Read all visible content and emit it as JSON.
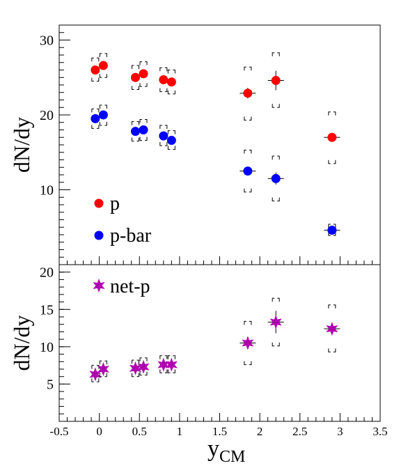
{
  "colors": {
    "p": "#ff0000",
    "pbar": "#0000ff",
    "netp": "#b000b0",
    "axis": "#000000"
  },
  "chart_data": [
    {
      "type": "scatter",
      "panel": "top",
      "ylabel": "dN/dy",
      "xlim": [
        -0.5,
        3.5
      ],
      "ylim": [
        0,
        32
      ],
      "yticks": [
        "10",
        "20",
        "30"
      ],
      "ytick_values": [
        10,
        20,
        30
      ],
      "legend_position": "bottom-left",
      "series": [
        {
          "name": "p",
          "marker": "circle",
          "color_key": "p",
          "x": [
            -0.05,
            0.05,
            0.45,
            0.55,
            0.8,
            0.9,
            1.85,
            2.2,
            2.9
          ],
          "y": [
            26.0,
            26.6,
            25.0,
            25.5,
            24.7,
            24.4,
            22.9,
            24.6,
            17.0
          ],
          "xerr": [
            0,
            0,
            0,
            0,
            0,
            0,
            0.1,
            0.1,
            0.1
          ],
          "yerr_stat": [
            0.3,
            0.3,
            0.3,
            0.3,
            0.3,
            0.3,
            0.7,
            1.3,
            0.5
          ],
          "ysys_low": [
            24.5,
            25.0,
            23.4,
            23.8,
            23.1,
            22.8,
            19.3,
            21.0,
            13.5
          ],
          "ysys_high": [
            27.6,
            28.2,
            26.6,
            27.1,
            26.3,
            26.0,
            26.4,
            28.3,
            20.4
          ]
        },
        {
          "name": "p-bar",
          "marker": "circle",
          "color_key": "pbar",
          "x": [
            -0.05,
            0.05,
            0.45,
            0.55,
            0.8,
            0.9,
            1.85,
            2.2,
            2.9
          ],
          "y": [
            19.5,
            20.0,
            17.8,
            18.0,
            17.2,
            16.6,
            12.5,
            11.5,
            4.6
          ],
          "xerr": [
            0,
            0,
            0,
            0,
            0,
            0,
            0.1,
            0.1,
            0.1
          ],
          "yerr_stat": [
            0.3,
            0.3,
            0.3,
            0.3,
            0.3,
            0.3,
            0.4,
            0.8,
            0.3
          ],
          "ysys_low": [
            18.2,
            18.6,
            16.5,
            16.6,
            15.9,
            15.4,
            9.7,
            8.5,
            3.9
          ],
          "ysys_high": [
            20.8,
            21.3,
            19.1,
            19.4,
            18.6,
            17.9,
            15.3,
            14.5,
            5.4
          ]
        }
      ]
    },
    {
      "type": "scatter",
      "panel": "bottom",
      "ylabel": "dN/dy",
      "xlabel": "y",
      "xlabel_sub": "CM",
      "xlim": [
        -0.5,
        3.5
      ],
      "ylim": [
        0,
        21
      ],
      "xticks": [
        "-0.5",
        "0",
        "0.5",
        "1",
        "1.5",
        "2",
        "2.5",
        "3",
        "3.5"
      ],
      "xtick_values": [
        -0.5,
        0,
        0.5,
        1,
        1.5,
        2,
        2.5,
        3,
        3.5
      ],
      "yticks": [
        "5",
        "10",
        "15",
        "20"
      ],
      "ytick_values": [
        5,
        10,
        15,
        20
      ],
      "legend_position": "top-left",
      "series": [
        {
          "name": "net-p",
          "marker": "star",
          "color_key": "netp",
          "x": [
            -0.05,
            0.05,
            0.45,
            0.55,
            0.8,
            0.9,
            1.85,
            2.2,
            2.9
          ],
          "y": [
            6.3,
            7.0,
            7.1,
            7.3,
            7.6,
            7.6,
            10.5,
            13.3,
            12.4
          ],
          "xerr": [
            0,
            0,
            0,
            0,
            0,
            0,
            0.1,
            0.1,
            0.1
          ],
          "yerr_stat": [
            0.5,
            0.5,
            0.5,
            0.5,
            0.5,
            0.5,
            0.8,
            1.5,
            0.6
          ],
          "ysys_low": [
            5.3,
            6.0,
            6.0,
            6.2,
            6.5,
            6.5,
            7.6,
            10.1,
            9.3
          ],
          "ysys_high": [
            7.5,
            8.1,
            8.2,
            8.5,
            8.8,
            8.8,
            13.4,
            16.5,
            15.6
          ]
        }
      ]
    }
  ]
}
